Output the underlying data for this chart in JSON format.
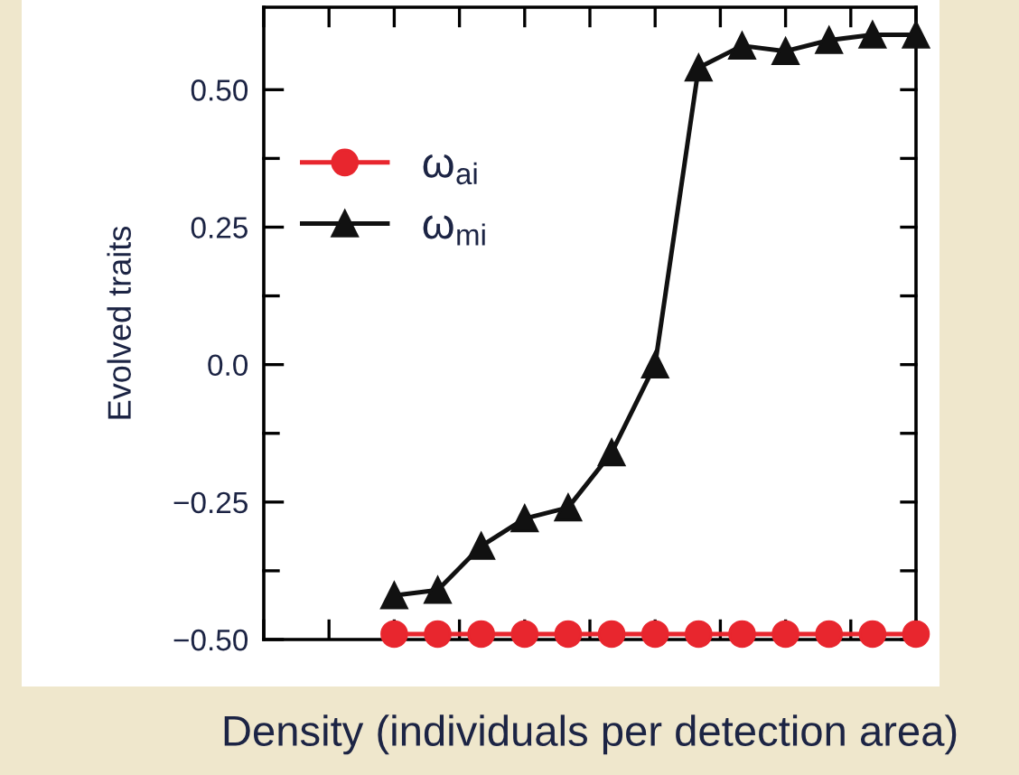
{
  "chart_data": {
    "type": "line",
    "xlabel": "Density (individuals per detection area)",
    "ylabel": "Evolved traits",
    "categories": [
      null,
      null,
      null,
      null,
      null,
      null,
      null,
      null,
      null,
      null,
      null,
      null,
      null
    ],
    "series": [
      {
        "name": "ω$_{ai}$",
        "color": "#e8262e",
        "marker": "circle",
        "values": [
          -0.49,
          -0.49,
          -0.49,
          -0.49,
          -0.49,
          -0.49,
          -0.49,
          -0.49,
          -0.49,
          -0.49,
          -0.49,
          -0.49,
          -0.49
        ]
      },
      {
        "name": "ω$_{mi}$",
        "color": "#111111",
        "marker": "triangle",
        "values": [
          -0.42,
          -0.41,
          -0.33,
          -0.28,
          -0.26,
          -0.16,
          0.0,
          0.54,
          0.58,
          0.57,
          0.59,
          0.6,
          0.6
        ]
      }
    ],
    "ylim": [
      -0.5,
      0.65
    ],
    "yticks": [
      {
        "value": -0.5,
        "label": "−0.50"
      },
      {
        "value": -0.25,
        "label": "−0.25"
      },
      {
        "value": 0,
        "label": "0.0"
      },
      {
        "value": 0.25,
        "label": "0.25"
      },
      {
        "value": 0.5,
        "label": "0.50"
      }
    ],
    "tick_labels": "y",
    "legend": "left",
    "grid": false,
    "line_style": "solid"
  }
}
